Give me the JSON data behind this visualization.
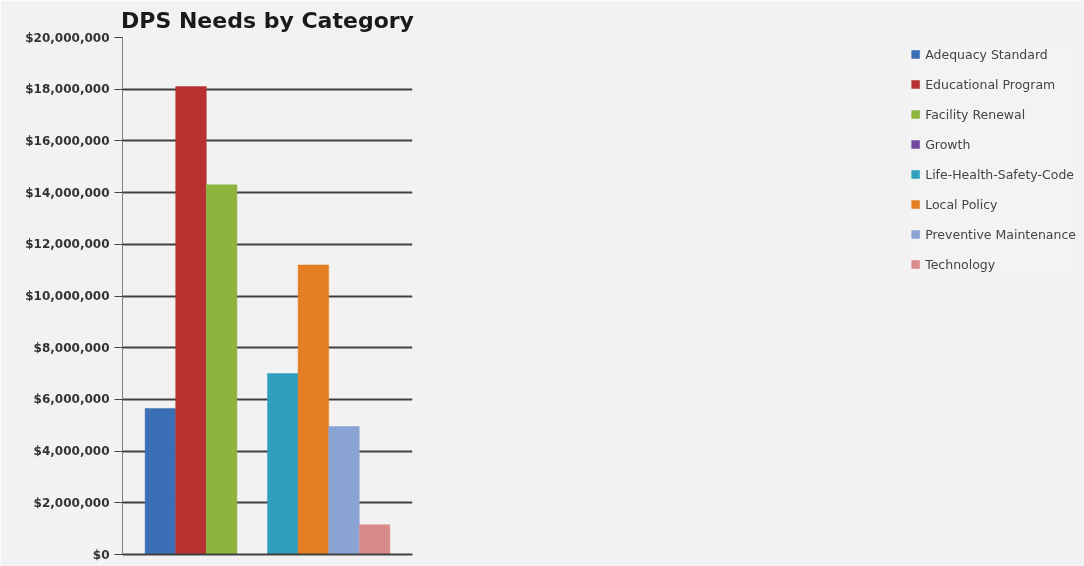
{
  "chart_data": {
    "type": "bar",
    "title": "DPS Needs by Category",
    "categories": [
      null
    ],
    "series": [
      {
        "name": "Adequacy Standard",
        "color": "#3a6fb5",
        "values": [
          5650000
        ]
      },
      {
        "name": "Educational Program",
        "color": "#b83232",
        "values": [
          18100000
        ]
      },
      {
        "name": "Facility Renewal",
        "color": "#8db43c",
        "values": [
          14300000
        ]
      },
      {
        "name": "Growth",
        "color": "#7149a0",
        "values": [
          0
        ]
      },
      {
        "name": "Life-Health-Safety-Code",
        "color": "#2e9fbf",
        "values": [
          7000000
        ]
      },
      {
        "name": "Local Policy",
        "color": "#e57e22",
        "values": [
          11200000
        ]
      },
      {
        "name": "Preventive Maintenance",
        "color": "#8aa4d4",
        "values": [
          4950000
        ]
      },
      {
        "name": "Technology",
        "color": "#d98a8a",
        "values": [
          1150000
        ]
      }
    ],
    "ylim": [
      0,
      20000000
    ],
    "yticks": [
      {
        "value": 0,
        "label": "$0"
      },
      {
        "value": 2000000,
        "label": "$2,000,000"
      },
      {
        "value": 4000000,
        "label": "$4,000,000"
      },
      {
        "value": 6000000,
        "label": "$6,000,000"
      },
      {
        "value": 8000000,
        "label": "$8,000,000"
      },
      {
        "value": 10000000,
        "label": "$10,000,000"
      },
      {
        "value": 12000000,
        "label": "$12,000,000"
      },
      {
        "value": 14000000,
        "label": "$14,000,000"
      },
      {
        "value": 16000000,
        "label": "$16,000,000"
      },
      {
        "value": 18000000,
        "label": "$18,000,000"
      },
      {
        "value": 20000000,
        "label": "$20,000,000"
      }
    ],
    "grid": "y",
    "legend": "right",
    "tick_labels": "y"
  }
}
